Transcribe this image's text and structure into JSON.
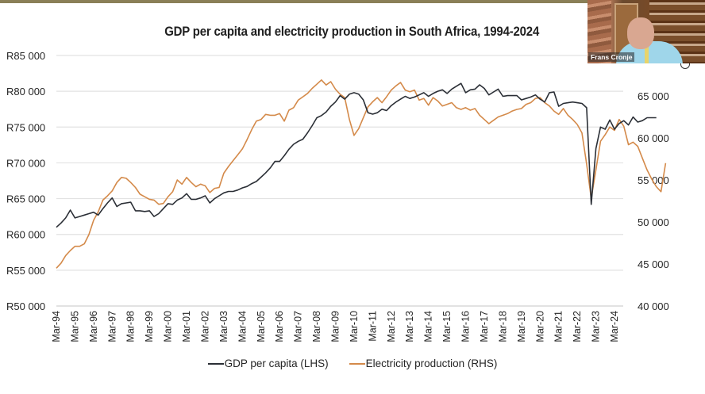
{
  "presentation": {
    "participant_name": "Frans Cronje"
  },
  "chart_data": {
    "type": "line",
    "title": "GDP per capita and electricity production in South Africa, 1994-2024",
    "xlabel": "",
    "ylabel_left": "",
    "ylabel_right": "",
    "y_left": {
      "range": [
        50000,
        85000
      ],
      "ticks": [
        50000,
        55000,
        60000,
        65000,
        70000,
        75000,
        80000,
        85000
      ],
      "tick_labels": [
        "R50 000",
        "R55 000",
        "R60 000",
        "R65 000",
        "R70 000",
        "R75 000",
        "R80 000",
        "R85 000"
      ]
    },
    "y_right": {
      "range": [
        40000,
        65000
      ],
      "ticks": [
        40000,
        45000,
        50000,
        55000,
        60000,
        65000
      ],
      "tick_labels": [
        "40 000",
        "45 000",
        "50 000",
        "55 000",
        "60 000",
        "65 000"
      ]
    },
    "x_tick_labels": [
      "Mar-94",
      "Mar-95",
      "Mar-96",
      "Mar-97",
      "Mar-98",
      "Mar-99",
      "Mar-00",
      "Mar-01",
      "Mar-02",
      "Mar-03",
      "Mar-04",
      "Mar-05",
      "Mar-06",
      "Mar-07",
      "Mar-08",
      "Mar-09",
      "Mar-10",
      "Mar-11",
      "Mar-12",
      "Mar-13",
      "Mar-14",
      "Mar-15",
      "Mar-16",
      "Mar-17",
      "Mar-18",
      "Mar-19",
      "Mar-20",
      "Mar-21",
      "Mar-22",
      "Mar-23",
      "Mar-24"
    ],
    "x_frequency": "quarterly",
    "x_start": "Mar-94",
    "grid": true,
    "legend_position": "bottom",
    "series": [
      {
        "name": "GDP per capita (LHS)",
        "axis": "left",
        "color": "#2b2f36",
        "values": [
          61000,
          61600,
          62300,
          63400,
          62300,
          62500,
          62700,
          62900,
          63100,
          62700,
          63600,
          64400,
          65100,
          63900,
          64300,
          64400,
          64500,
          63300,
          63300,
          63200,
          63300,
          62500,
          62900,
          63600,
          64300,
          64200,
          64800,
          65100,
          65700,
          64900,
          64900,
          65100,
          65400,
          64400,
          65000,
          65400,
          65800,
          66000,
          66000,
          66200,
          66500,
          66700,
          67100,
          67400,
          68000,
          68600,
          69300,
          70200,
          70200,
          71000,
          71900,
          72600,
          73000,
          73300,
          74200,
          75200,
          76300,
          76600,
          77100,
          77900,
          78500,
          79400,
          78900,
          79600,
          79800,
          79600,
          78800,
          77000,
          76800,
          77000,
          77500,
          77300,
          78000,
          78500,
          78900,
          79300,
          79000,
          79200,
          79500,
          79800,
          79300,
          79700,
          80000,
          80200,
          79700,
          80300,
          80700,
          81100,
          79800,
          80200,
          80300,
          80900,
          80400,
          79500,
          79900,
          80300,
          79300,
          79400,
          79400,
          79400,
          78800,
          79000,
          79200,
          79500,
          78900,
          78500,
          79800,
          79900,
          77900,
          78300,
          78400,
          78500,
          78400,
          78300,
          77700,
          64200,
          72000,
          75000,
          74700,
          76000,
          74700,
          75500,
          75900,
          75300,
          76400,
          75700,
          75900,
          76300,
          76300,
          76300
        ]
      },
      {
        "name": "Electricity production (RHS)",
        "axis": "right",
        "color": "#d48a4a",
        "values": [
          44500,
          45100,
          46000,
          46600,
          47100,
          47100,
          47400,
          48500,
          50200,
          51200,
          52600,
          53100,
          53700,
          54700,
          55300,
          55200,
          54700,
          54100,
          53300,
          53000,
          52700,
          52600,
          52100,
          52200,
          53000,
          53600,
          55000,
          54500,
          55300,
          54700,
          54200,
          54500,
          54300,
          53500,
          54000,
          54100,
          55800,
          56600,
          57300,
          58000,
          58700,
          59800,
          61000,
          62000,
          62200,
          62800,
          62700,
          62700,
          62900,
          62000,
          63300,
          63600,
          64500,
          64900,
          65300,
          65900,
          66400,
          66900,
          66300,
          66700,
          65800,
          65200,
          64800,
          62200,
          60300,
          61100,
          62400,
          63700,
          64300,
          64800,
          64200,
          64900,
          65700,
          66200,
          66600,
          65700,
          65500,
          65700,
          64500,
          64700,
          63900,
          64800,
          64400,
          63800,
          64000,
          64200,
          63600,
          63400,
          63600,
          63300,
          63500,
          62700,
          62200,
          61700,
          62100,
          62500,
          62700,
          62900,
          63200,
          63400,
          63500,
          64000,
          64200,
          64700,
          64800,
          64200,
          63800,
          63200,
          62800,
          63500,
          62700,
          62200,
          61600,
          60600,
          56900,
          52800,
          56200,
          59600,
          60400,
          61300,
          60900,
          62200,
          61400,
          59200,
          59500,
          59000,
          57600,
          56200,
          55100,
          54200,
          53600,
          57000
        ]
      }
    ]
  }
}
